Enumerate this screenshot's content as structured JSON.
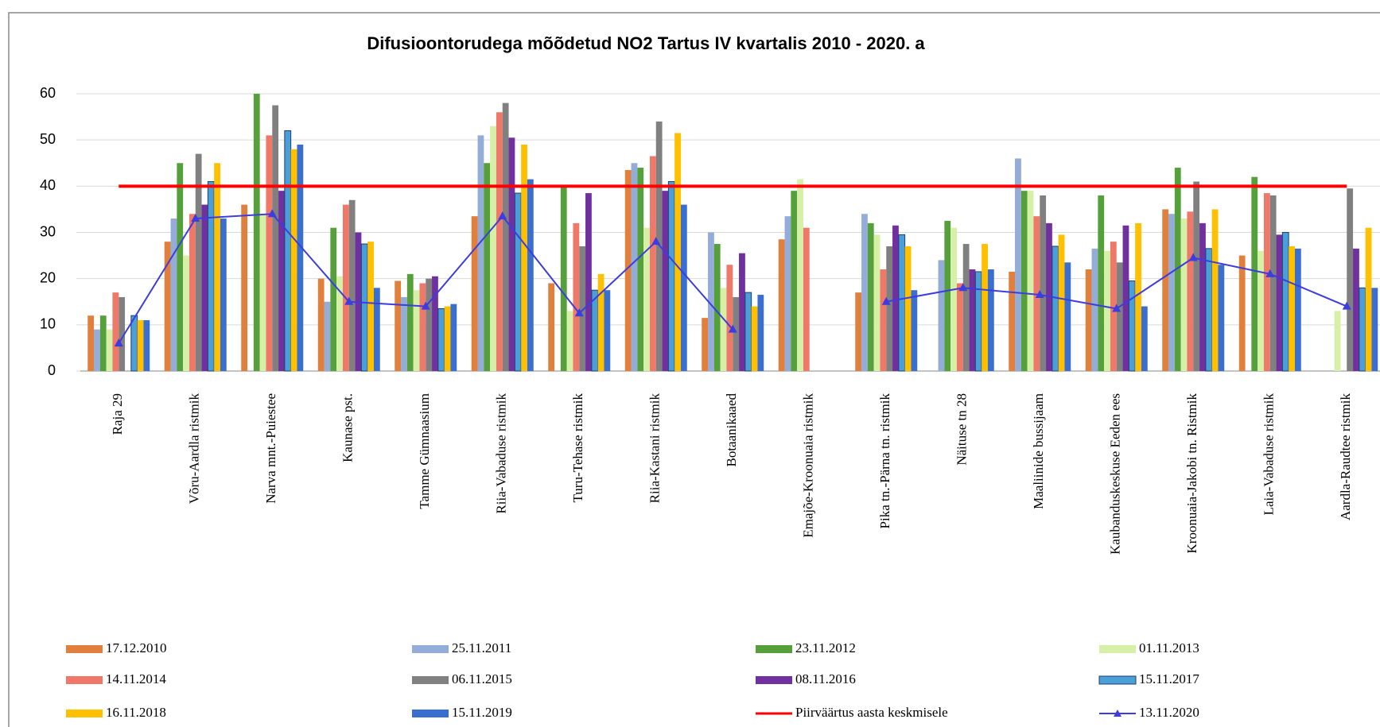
{
  "chart_data": {
    "type": "bar",
    "title": "Difusioontorudega mõõdetud NO2 Tartus IV kvartalis 2010 - 2020. a",
    "categories": [
      "Raja 29",
      "Võru-Aardla ristmik",
      "Narva mnt.-Puiestee",
      "Kaunase pst.",
      "Tamme Gümnaasium",
      "Riia-Vabaduse ristmik",
      "Turu-Tehase ristmik",
      "Riia-Kastani ristmik",
      "Botaanikaaed",
      "Emajõe-Kroonuaia  ristmik",
      "Pika tn.-Pärna tn. ristmik",
      "Näituse tn 28",
      "Maaliinide bussijaam",
      "Kaubanduskeskuse Eeden ees",
      "Kroonuaia-Jakobi  tn. Ristmik",
      "Laia-Vabaduse ristmik",
      "Aardla-Raudtee ristmik"
    ],
    "ylim": [
      0,
      60
    ],
    "yticks": [
      0,
      10,
      20,
      30,
      40,
      50,
      60
    ],
    "grid": true,
    "series": [
      {
        "name": "17.12.2010",
        "color": "#e0803c",
        "values": [
          12,
          28,
          36,
          20,
          19.5,
          33.5,
          19,
          43.5,
          11.5,
          28.5,
          17,
          null,
          21.5,
          22,
          35,
          25,
          null
        ]
      },
      {
        "name": "25.11.2011",
        "color": "#94acd8",
        "values": [
          9,
          33,
          null,
          15,
          16,
          51,
          null,
          45,
          30,
          33.5,
          34,
          24,
          46,
          26.5,
          34,
          null,
          null
        ]
      },
      {
        "name": "23.11.2012",
        "color": "#56a03c",
        "values": [
          12,
          45,
          60,
          31,
          21,
          45,
          40,
          44,
          27.5,
          39,
          32,
          32.5,
          39,
          38,
          44,
          42,
          null
        ]
      },
      {
        "name": "01.11.2013",
        "color": "#d6f0a8",
        "values": [
          9,
          25,
          34,
          20.5,
          17.5,
          53,
          13,
          31,
          18,
          41.5,
          29.5,
          31,
          39,
          26,
          33,
          26,
          13
        ]
      },
      {
        "name": "14.11.2014",
        "color": "#f07868",
        "values": [
          17,
          34,
          51,
          36,
          19,
          56,
          32,
          46.5,
          23,
          31,
          22,
          19,
          33.5,
          28,
          34.5,
          38.5,
          null
        ]
      },
      {
        "name": "06.11.2015",
        "color": "#808080",
        "values": [
          16,
          47,
          57.5,
          37,
          20,
          58,
          27,
          54,
          16,
          null,
          27,
          27.5,
          38,
          23.5,
          41,
          38,
          39.5
        ]
      },
      {
        "name": "08.11.2016",
        "color": "#7030a0",
        "values": [
          null,
          36,
          39,
          30,
          20.5,
          50.5,
          38.5,
          39,
          25.5,
          null,
          31.5,
          22,
          32,
          31.5,
          32,
          29.5,
          26.5
        ]
      },
      {
        "name": "15.11.2017",
        "color": "#4a9fd8",
        "values": [
          12,
          41,
          52,
          27.5,
          13.5,
          38.5,
          17.5,
          41,
          17,
          null,
          29.5,
          21.5,
          27,
          19.5,
          26.5,
          30,
          18
        ]
      },
      {
        "name": "16.11.2018",
        "color": "#ffc000",
        "values": [
          11,
          45,
          48,
          28,
          14,
          49,
          21,
          51.5,
          14,
          null,
          27,
          27.5,
          29.5,
          32,
          35,
          27,
          31
        ]
      },
      {
        "name": "15.11.2019",
        "color": "#3a6fd0",
        "values": [
          11,
          33,
          49,
          18,
          14.5,
          41.5,
          17.5,
          36,
          16.5,
          null,
          17.5,
          22,
          23.5,
          14,
          23,
          26.5,
          18
        ]
      },
      {
        "name": "Piirväärtus aasta keskmisele",
        "color": "#ff0000",
        "type": "line",
        "values": [
          40,
          40,
          40,
          40,
          40,
          40,
          40,
          40,
          40,
          40,
          40,
          40,
          40,
          40,
          40,
          40,
          40
        ]
      },
      {
        "name": "13.11.2020",
        "color": "#3c3ce0",
        "type": "line",
        "marker": "triangle",
        "values": [
          6,
          33,
          34,
          15,
          14,
          33.5,
          12.5,
          28,
          9,
          null,
          15,
          18,
          16.5,
          13.5,
          24.5,
          21,
          14
        ]
      }
    ]
  }
}
